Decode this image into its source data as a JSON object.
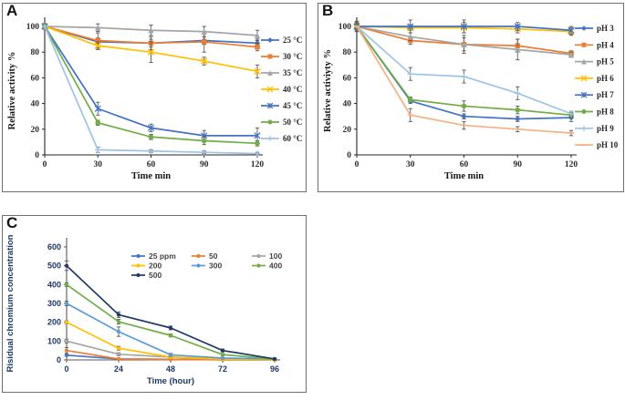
{
  "panels": {
    "a_label": "A",
    "b_label": "B",
    "c_label": "C"
  },
  "chart_data": [
    {
      "panel_label": "A",
      "type": "line",
      "title": "",
      "xlabel": "Time min",
      "ylabel": "Relative activity  %",
      "x": [
        0,
        30,
        60,
        90,
        120
      ],
      "xlim": [
        0,
        120
      ],
      "ylim": [
        0,
        100
      ],
      "yticks": [
        0,
        20,
        40,
        60,
        80,
        100
      ],
      "grid": false,
      "error_bars": true,
      "legend_position": "right",
      "series": [
        {
          "name": "25 °C",
          "color": "#4472C4",
          "marker": "diamond",
          "values": [
            100,
            88,
            87,
            89,
            87
          ],
          "err": [
            2,
            3,
            3,
            3,
            3
          ]
        },
        {
          "name": "30 °C",
          "color": "#ED7D31",
          "marker": "square",
          "values": [
            100,
            89,
            87,
            88,
            84
          ],
          "err": [
            2,
            6,
            5,
            8,
            3
          ]
        },
        {
          "name": "35 °C",
          "color": "#A5A5A5",
          "marker": "triangle",
          "values": [
            100,
            99,
            97,
            96,
            93
          ],
          "err": [
            2,
            3,
            4,
            4,
            4
          ]
        },
        {
          "name": "40 °C",
          "color": "#FFC000",
          "marker": "x",
          "values": [
            100,
            85,
            80,
            73,
            65
          ],
          "err": [
            2,
            3,
            8,
            3,
            5
          ]
        },
        {
          "name": "45 °C",
          "color": "#4472C4",
          "marker": "asterisk",
          "values": [
            100,
            36,
            21,
            15,
            15
          ],
          "err": [
            2,
            5,
            3,
            4,
            6
          ]
        },
        {
          "name": "50 °C",
          "color": "#70AD47",
          "marker": "circle",
          "values": [
            100,
            25,
            14,
            11,
            9
          ],
          "err": [
            2,
            2,
            2,
            3,
            2
          ]
        },
        {
          "name": "60 °C",
          "color": "#9DC3E6",
          "marker": "plus",
          "values": [
            100,
            4,
            3,
            2,
            1
          ],
          "err": [
            2,
            2,
            1,
            1,
            1
          ]
        }
      ]
    },
    {
      "panel_label": "B",
      "type": "line",
      "title": "",
      "xlabel": "Time min",
      "ylabel": "Relative activiyty %",
      "x": [
        0,
        30,
        60,
        90,
        120
      ],
      "xlim": [
        0,
        120
      ],
      "ylim": [
        0,
        100
      ],
      "yticks": [
        0,
        20,
        40,
        60,
        80,
        100
      ],
      "grid": false,
      "error_bars": true,
      "legend_position": "right",
      "series": [
        {
          "name": "pH 3",
          "color": "#4472C4",
          "marker": "diamond",
          "values": [
            100,
            42,
            30,
            28,
            29
          ],
          "err": [
            3,
            2,
            2,
            2,
            3
          ]
        },
        {
          "name": "pH 4",
          "color": "#ED7D31",
          "marker": "square",
          "values": [
            100,
            89,
            86,
            85,
            79
          ],
          "err": [
            4,
            3,
            5,
            5,
            2
          ]
        },
        {
          "name": "pH 5",
          "color": "#A5A5A5",
          "marker": "triangle",
          "values": [
            100,
            92,
            86,
            82,
            78
          ],
          "err": [
            2,
            3,
            7,
            8,
            2
          ]
        },
        {
          "name": "pH 6",
          "color": "#FFC000",
          "marker": "x",
          "values": [
            100,
            99,
            99,
            98,
            96
          ],
          "err": [
            3,
            2,
            4,
            3,
            3
          ]
        },
        {
          "name": "pH 7",
          "color": "#4472C4",
          "marker": "asterisk",
          "values": [
            100,
            100,
            100,
            100,
            97
          ],
          "err": [
            4,
            5,
            5,
            3,
            3
          ]
        },
        {
          "name": "pH 8",
          "color": "#70AD47",
          "marker": "circle",
          "values": [
            100,
            43,
            38,
            35,
            31
          ],
          "err": [
            2,
            2,
            4,
            3,
            2
          ]
        },
        {
          "name": "pH 9",
          "color": "#9DC3E6",
          "marker": "plus",
          "values": [
            100,
            63,
            61,
            48,
            32
          ],
          "err": [
            2,
            5,
            5,
            5,
            2
          ]
        },
        {
          "name": "pH 10",
          "color": "#F4B183",
          "marker": "dash",
          "values": [
            100,
            31,
            23,
            20,
            17
          ],
          "err": [
            2,
            5,
            3,
            2,
            2
          ]
        }
      ]
    },
    {
      "panel_label": "C",
      "type": "line",
      "title": "",
      "xlabel": "Time (hour)",
      "ylabel": "Risidual chromium concentration",
      "x": [
        0,
        24,
        48,
        72,
        96
      ],
      "xlim": [
        0,
        96
      ],
      "ylim": [
        0,
        600
      ],
      "yticks": [
        0,
        100,
        200,
        300,
        400,
        500,
        600
      ],
      "grid": false,
      "error_bars": true,
      "legend_position": "inside-top",
      "series": [
        {
          "name": "25 ppm",
          "color": "#4472C4",
          "marker": "circle",
          "values": [
            25,
            5,
            3,
            1,
            0
          ],
          "err": [
            3,
            2,
            2,
            1,
            1
          ]
        },
        {
          "name": "50",
          "color": "#ED7D31",
          "marker": "circle",
          "values": [
            50,
            5,
            3,
            1,
            0
          ],
          "err": [
            15,
            3,
            2,
            1,
            1
          ]
        },
        {
          "name": "100",
          "color": "#A5A5A5",
          "marker": "circle",
          "values": [
            100,
            30,
            15,
            5,
            0
          ],
          "err": [
            10,
            8,
            4,
            3,
            1
          ]
        },
        {
          "name": "200",
          "color": "#FFC000",
          "marker": "circle",
          "values": [
            200,
            62,
            15,
            5,
            0
          ],
          "err": [
            8,
            10,
            4,
            3,
            1
          ]
        },
        {
          "name": "300",
          "color": "#5B9BD5",
          "marker": "circle",
          "values": [
            300,
            150,
            27,
            10,
            5
          ],
          "err": [
            12,
            25,
            8,
            4,
            3
          ]
        },
        {
          "name": "400",
          "color": "#70AD47",
          "marker": "circle",
          "values": [
            400,
            203,
            130,
            28,
            5
          ],
          "err": [
            10,
            12,
            8,
            5,
            3
          ]
        },
        {
          "name": "500",
          "color": "#1F3864",
          "marker": "circle",
          "values": [
            500,
            240,
            170,
            50,
            5
          ],
          "err": [
            25,
            15,
            10,
            8,
            5
          ]
        }
      ]
    }
  ],
  "colors": {
    "axis_dark": "#262626",
    "axis_gray": "#595959",
    "error_bar": "#595959",
    "c_text_navy": "#1F3864"
  }
}
